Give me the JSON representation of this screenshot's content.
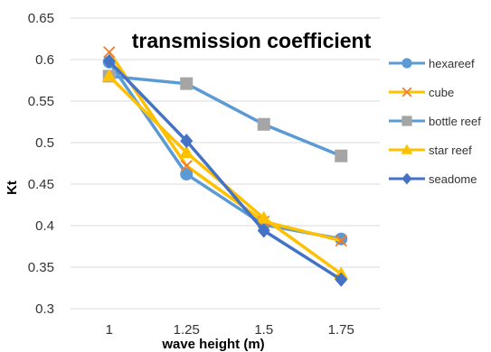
{
  "chart_data": {
    "type": "line",
    "title": "transmission coefficient",
    "xlabel": "wave height (m)",
    "ylabel": "Kt",
    "categories": [
      "1",
      "1.25",
      "1.5",
      "1.75"
    ],
    "ylim": [
      0.3,
      0.65
    ],
    "yticks": [
      "0.3",
      "0.35",
      "0.4",
      "0.45",
      "0.5",
      "0.55",
      "0.6",
      "0.65"
    ],
    "grid": "horizontal",
    "legend_position": "right",
    "series": [
      {
        "name": "hexareef",
        "color": "#5B9BD5",
        "marker": "circle",
        "values": [
          0.597,
          0.462,
          0.401,
          0.384
        ]
      },
      {
        "name": "cube",
        "color": "#ED7D31",
        "line_color": "#FFC000",
        "marker": "x",
        "values": [
          0.609,
          0.472,
          0.405,
          0.382
        ]
      },
      {
        "name": "bottle reef",
        "color": "#A5A5A5",
        "line_color": "#5B9BD5",
        "marker": "square",
        "values": [
          0.58,
          0.571,
          0.522,
          0.484
        ]
      },
      {
        "name": "star reef",
        "color": "#FFC000",
        "marker": "triangle",
        "values": [
          0.58,
          0.488,
          0.409,
          0.342
        ]
      },
      {
        "name": "seadome",
        "color": "#4472C4",
        "marker": "diamond",
        "values": [
          0.598,
          0.502,
          0.394,
          0.335
        ]
      }
    ]
  }
}
